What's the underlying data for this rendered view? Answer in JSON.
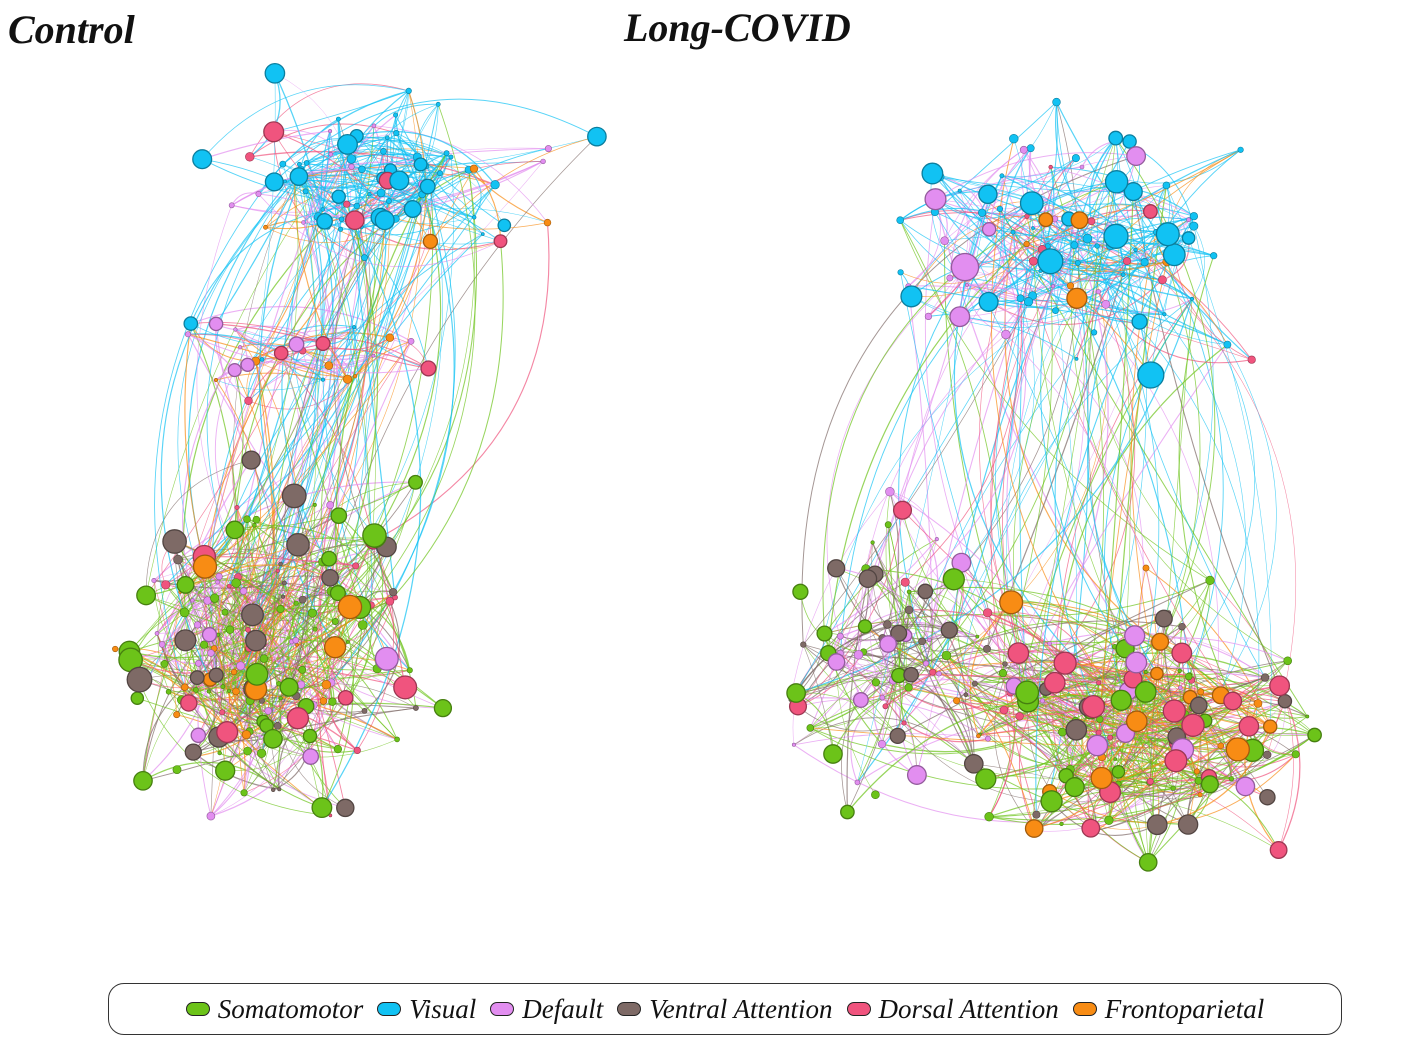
{
  "panels": [
    {
      "title": "Control"
    },
    {
      "title": "Long-COVID"
    }
  ],
  "legend": [
    {
      "label": "Somatomotor",
      "color": "#6cc319"
    },
    {
      "label": "Visual",
      "color": "#11c2f3"
    },
    {
      "label": "Default",
      "color": "#e28ef0"
    },
    {
      "label": "Ventral Attention",
      "color": "#7e6a66"
    },
    {
      "label": "Dorsal Attention",
      "color": "#f0547e"
    },
    {
      "label": "Frontoparietal",
      "color": "#f88c14"
    }
  ],
  "colors": {
    "Somatomotor": "#6cc319",
    "Visual": "#11c2f3",
    "Default": "#e28ef0",
    "Ventral Attention": "#7e6a66",
    "Dorsal Attention": "#f0547e",
    "Frontoparietal": "#f88c14"
  }
}
